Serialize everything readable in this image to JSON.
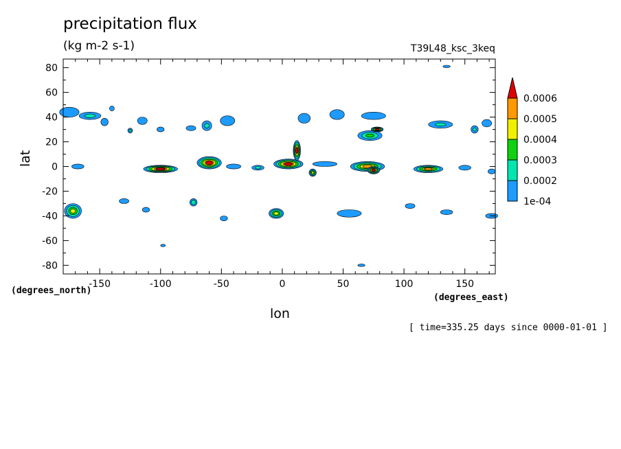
{
  "header": {
    "title": "precipitation flux",
    "units": "(kg m-2 s-1)",
    "run_name": "T39L48_ksc_3keq"
  },
  "footer": {
    "time_note": "[ time=335.25 days since 0000-01-01 ]"
  },
  "chart_data": {
    "type": "heatmap",
    "title": "precipitation flux",
    "subtitle": "(kg m-2 s-1)",
    "xlabel": "lon",
    "ylabel": "lat",
    "x_units": "(degrees_east)",
    "y_units": "(degrees_north)",
    "xlim": [
      -180,
      175
    ],
    "ylim": [
      -87,
      87
    ],
    "x_ticks": [
      -150,
      -100,
      -50,
      0,
      50,
      100,
      150
    ],
    "y_ticks": [
      -80,
      -60,
      -40,
      -20,
      0,
      20,
      40,
      60,
      80
    ],
    "levels": [
      0.0001,
      0.0002,
      0.0003,
      0.0004,
      0.0005,
      0.0006
    ],
    "level_labels": [
      "1e-04",
      "0.0002",
      "0.0003",
      "0.0004",
      "0.0005",
      "0.0006"
    ],
    "colors": [
      "#1e9bff",
      "#00e6b0",
      "#10d010",
      "#f0f000",
      "#ff9900",
      "#e00000"
    ],
    "colorbar": "right",
    "grid": false,
    "features": [
      {
        "lon": -175,
        "lat": 44,
        "rx": 8,
        "ry": 4,
        "v": 0.00017
      },
      {
        "lon": -158,
        "lat": 41,
        "rx": 9,
        "ry": 3,
        "v": 0.00022
      },
      {
        "lon": -146,
        "lat": 36,
        "rx": 3,
        "ry": 3,
        "v": 0.00014
      },
      {
        "lon": -140,
        "lat": 47,
        "rx": 2,
        "ry": 2,
        "v": 0.00012
      },
      {
        "lon": -125,
        "lat": 29,
        "rx": 2,
        "ry": 2,
        "v": 0.00021
      },
      {
        "lon": -115,
        "lat": 37,
        "rx": 4,
        "ry": 3,
        "v": 0.00016
      },
      {
        "lon": -100,
        "lat": 30,
        "rx": 3,
        "ry": 2,
        "v": 0.00013
      },
      {
        "lon": -75,
        "lat": 31,
        "rx": 4,
        "ry": 2,
        "v": 0.00017
      },
      {
        "lon": -62,
        "lat": 33,
        "rx": 4,
        "ry": 4,
        "v": 0.00021
      },
      {
        "lon": -45,
        "lat": 37,
        "rx": 6,
        "ry": 4,
        "v": 0.00019
      },
      {
        "lon": 18,
        "lat": 39,
        "rx": 5,
        "ry": 4,
        "v": 0.00015
      },
      {
        "lon": 45,
        "lat": 42,
        "rx": 6,
        "ry": 4,
        "v": 0.00018
      },
      {
        "lon": 75,
        "lat": 41,
        "rx": 10,
        "ry": 3,
        "v": 0.00016
      },
      {
        "lon": 72,
        "lat": 25,
        "rx": 10,
        "ry": 4,
        "v": 0.00032
      },
      {
        "lon": 78,
        "lat": 30,
        "rx": 5,
        "ry": 2,
        "v": 0.00065
      },
      {
        "lon": 130,
        "lat": 34,
        "rx": 10,
        "ry": 3,
        "v": 0.0002
      },
      {
        "lon": 158,
        "lat": 30,
        "rx": 3,
        "ry": 3,
        "v": 0.00021
      },
      {
        "lon": 168,
        "lat": 35,
        "rx": 4,
        "ry": 3,
        "v": 0.00017
      },
      {
        "lon": -168,
        "lat": 0,
        "rx": 5,
        "ry": 2,
        "v": 0.00016
      },
      {
        "lon": -100,
        "lat": -2,
        "rx": 14,
        "ry": 3,
        "v": 0.00065
      },
      {
        "lon": -60,
        "lat": 3,
        "rx": 10,
        "ry": 5,
        "v": 0.00065
      },
      {
        "lon": -40,
        "lat": 0,
        "rx": 6,
        "ry": 2,
        "v": 0.00015
      },
      {
        "lon": -20,
        "lat": -1,
        "rx": 5,
        "ry": 2,
        "v": 0.00022
      },
      {
        "lon": 5,
        "lat": 2,
        "rx": 12,
        "ry": 4,
        "v": 0.00065
      },
      {
        "lon": 12,
        "lat": 13,
        "rx": 3,
        "ry": 8,
        "v": 0.00062
      },
      {
        "lon": 25,
        "lat": -5,
        "rx": 3,
        "ry": 3,
        "v": 0.00045
      },
      {
        "lon": 35,
        "lat": 2,
        "rx": 10,
        "ry": 2,
        "v": 0.00015
      },
      {
        "lon": 70,
        "lat": 0,
        "rx": 14,
        "ry": 4,
        "v": 0.00055
      },
      {
        "lon": 75,
        "lat": -3,
        "rx": 5,
        "ry": 3,
        "v": 0.00065
      },
      {
        "lon": 120,
        "lat": -2,
        "rx": 12,
        "ry": 3,
        "v": 0.00052
      },
      {
        "lon": 150,
        "lat": -1,
        "rx": 5,
        "ry": 2,
        "v": 0.00016
      },
      {
        "lon": 172,
        "lat": -4,
        "rx": 3,
        "ry": 2,
        "v": 0.00014
      },
      {
        "lon": -172,
        "lat": -36,
        "rx": 7,
        "ry": 6,
        "v": 0.00042
      },
      {
        "lon": -130,
        "lat": -28,
        "rx": 4,
        "ry": 2,
        "v": 0.00014
      },
      {
        "lon": -112,
        "lat": -35,
        "rx": 3,
        "ry": 2,
        "v": 0.00016
      },
      {
        "lon": -73,
        "lat": -29,
        "rx": 3,
        "ry": 3,
        "v": 0.00028
      },
      {
        "lon": -48,
        "lat": -42,
        "rx": 3,
        "ry": 2,
        "v": 0.00015
      },
      {
        "lon": -5,
        "lat": -38,
        "rx": 6,
        "ry": 4,
        "v": 0.00045
      },
      {
        "lon": 55,
        "lat": -38,
        "rx": 10,
        "ry": 3,
        "v": 0.00018
      },
      {
        "lon": 105,
        "lat": -32,
        "rx": 4,
        "ry": 2,
        "v": 0.00014
      },
      {
        "lon": 135,
        "lat": -37,
        "rx": 5,
        "ry": 2,
        "v": 0.00016
      },
      {
        "lon": 172,
        "lat": -40,
        "rx": 5,
        "ry": 2,
        "v": 0.00015
      },
      {
        "lon": -98,
        "lat": -64,
        "rx": 2,
        "ry": 1,
        "v": 0.00012
      },
      {
        "lon": 65,
        "lat": -80,
        "rx": 3,
        "ry": 1,
        "v": 0.00012
      },
      {
        "lon": 135,
        "lat": 81,
        "rx": 3,
        "ry": 1,
        "v": 0.00012
      }
    ]
  }
}
